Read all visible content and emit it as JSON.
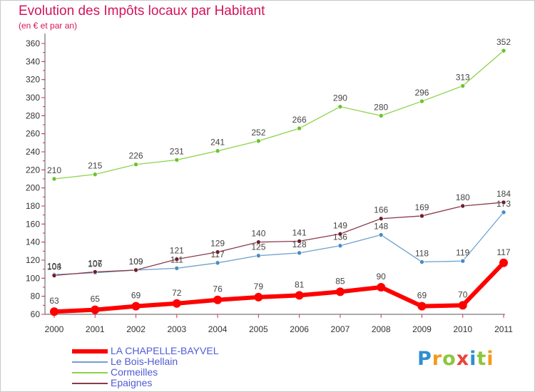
{
  "title": "Evolution des Impôts locaux par Habitant",
  "subtitle": "(en € et par an)",
  "logo": {
    "letters": [
      "P",
      "r",
      "o",
      "x",
      "i",
      "t",
      "i"
    ],
    "colors": [
      "#2e8fd1",
      "#f29a1d",
      "#8cc63f",
      "#e8463c",
      "#2e8fd1",
      "#8cc63f",
      "#f29a1d"
    ]
  },
  "chart_data": {
    "type": "line",
    "title": "Evolution des Impôts locaux par Habitant",
    "subtitle": "(en € et par an)",
    "x": [
      "2000",
      "2001",
      "2002",
      "2003",
      "2004",
      "2005",
      "2006",
      "2007",
      "2008",
      "2009",
      "2010",
      "2011"
    ],
    "y_ticks": [
      "60",
      "80",
      "100",
      "120",
      "140",
      "160",
      "180",
      "200",
      "220",
      "240",
      "260",
      "280",
      "300",
      "320",
      "340",
      "360"
    ],
    "ylim": [
      60,
      360
    ],
    "grid": false,
    "legend_position": "bottom-left",
    "series": [
      {
        "name": "Cormeilles",
        "color": "#8cd34a",
        "marker": "#6ac330",
        "width": 1.3,
        "values": [
          210,
          215,
          226,
          231,
          241,
          252,
          266,
          290,
          280,
          296,
          313,
          352
        ],
        "labels": [
          "210",
          "215",
          "226",
          "231",
          "241",
          "252",
          "266",
          "290",
          "280",
          "296",
          "313",
          "352"
        ]
      },
      {
        "name": "Le Bois-Hellain",
        "color": "#6fa1cc",
        "marker": "#4a8bc2",
        "width": 1.3,
        "values": [
          104,
          106,
          109,
          111,
          117,
          125,
          128,
          136,
          148,
          118,
          119,
          173
        ],
        "labels": [
          "104",
          "106",
          "109",
          "111",
          "117",
          "125",
          "128",
          "136",
          "148",
          "118",
          "119",
          "173"
        ]
      },
      {
        "name": "Epaignes",
        "color": "#8b3a4a",
        "marker": "#6b1f2e",
        "width": 1.3,
        "values": [
          103,
          107,
          109,
          121,
          129,
          140,
          141,
          149,
          166,
          169,
          180,
          184
        ],
        "labels": [
          "103",
          "107",
          "109",
          "121",
          "129",
          "140",
          "141",
          "149",
          "166",
          "169",
          "180",
          "184"
        ]
      },
      {
        "name": "LA CHAPELLE-BAYVEL",
        "color": "#ff0000",
        "marker": "#ff0000",
        "width": 6,
        "values": [
          63,
          65,
          69,
          72,
          76,
          79,
          81,
          85,
          90,
          69,
          70,
          117
        ],
        "labels": [
          "63",
          "65",
          "69",
          "72",
          "76",
          "79",
          "81",
          "85",
          "90",
          "69",
          "70",
          "117"
        ]
      }
    ],
    "legend": [
      {
        "label": "LA CHAPELLE-BAYVEL",
        "color": "#ff0000",
        "thickness": 6
      },
      {
        "label": "Le Bois-Hellain",
        "color": "#6fa1cc",
        "thickness": 2
      },
      {
        "label": "Cormeilles",
        "color": "#8cd34a",
        "thickness": 2
      },
      {
        "label": "Epaignes",
        "color": "#8b3a4a",
        "thickness": 2
      }
    ]
  }
}
